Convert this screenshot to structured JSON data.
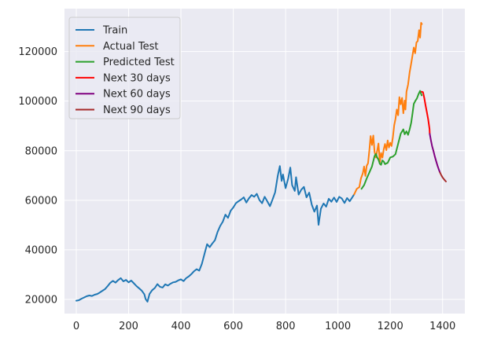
{
  "chart_data": {
    "type": "line",
    "xlim": [
      -45,
      1485
    ],
    "ylim": [
      14300,
      137300
    ],
    "x_ticks": [
      0,
      200,
      400,
      600,
      800,
      1000,
      1200,
      1400
    ],
    "y_ticks": [
      20000,
      40000,
      60000,
      80000,
      100000,
      120000
    ],
    "x_tick_labels": [
      "0",
      "200",
      "400",
      "600",
      "800",
      "1000",
      "1200",
      "1400"
    ],
    "y_tick_labels": [
      "20000",
      "40000",
      "60000",
      "80000",
      "100000",
      "120000"
    ],
    "grid": true,
    "legend_position": "upper-left",
    "series": [
      {
        "name": "Train",
        "color": "#1f77b4",
        "points": [
          [
            0,
            19500
          ],
          [
            10,
            19700
          ],
          [
            20,
            20300
          ],
          [
            30,
            20800
          ],
          [
            40,
            21300
          ],
          [
            50,
            21600
          ],
          [
            60,
            21400
          ],
          [
            70,
            21900
          ],
          [
            80,
            22200
          ],
          [
            90,
            22800
          ],
          [
            100,
            23500
          ],
          [
            110,
            24200
          ],
          [
            120,
            25400
          ],
          [
            130,
            26700
          ],
          [
            140,
            27500
          ],
          [
            150,
            26800
          ],
          [
            160,
            27800
          ],
          [
            170,
            28600
          ],
          [
            180,
            27300
          ],
          [
            190,
            27900
          ],
          [
            200,
            26900
          ],
          [
            210,
            27600
          ],
          [
            220,
            26500
          ],
          [
            230,
            25400
          ],
          [
            240,
            24500
          ],
          [
            250,
            23600
          ],
          [
            260,
            22100
          ],
          [
            265,
            20200
          ],
          [
            272,
            19100
          ],
          [
            280,
            22200
          ],
          [
            290,
            23700
          ],
          [
            300,
            24600
          ],
          [
            310,
            26200
          ],
          [
            320,
            25100
          ],
          [
            330,
            24800
          ],
          [
            340,
            26100
          ],
          [
            350,
            25600
          ],
          [
            360,
            26300
          ],
          [
            370,
            26900
          ],
          [
            380,
            27100
          ],
          [
            390,
            27700
          ],
          [
            400,
            28100
          ],
          [
            410,
            27400
          ],
          [
            420,
            28600
          ],
          [
            430,
            29300
          ],
          [
            440,
            30200
          ],
          [
            450,
            31400
          ],
          [
            460,
            32200
          ],
          [
            470,
            31600
          ],
          [
            480,
            34400
          ],
          [
            490,
            38400
          ],
          [
            500,
            42300
          ],
          [
            510,
            41100
          ],
          [
            520,
            42600
          ],
          [
            530,
            43900
          ],
          [
            540,
            47200
          ],
          [
            550,
            49600
          ],
          [
            560,
            51400
          ],
          [
            570,
            54200
          ],
          [
            580,
            52900
          ],
          [
            590,
            55800
          ],
          [
            600,
            57100
          ],
          [
            610,
            58800
          ],
          [
            620,
            59600
          ],
          [
            630,
            60300
          ],
          [
            640,
            61200
          ],
          [
            650,
            59100
          ],
          [
            660,
            60800
          ],
          [
            670,
            62100
          ],
          [
            680,
            61400
          ],
          [
            690,
            62600
          ],
          [
            700,
            60100
          ],
          [
            710,
            58800
          ],
          [
            720,
            61400
          ],
          [
            730,
            59600
          ],
          [
            740,
            57600
          ],
          [
            750,
            60300
          ],
          [
            760,
            63200
          ],
          [
            770,
            69800
          ],
          [
            778,
            73800
          ],
          [
            785,
            67800
          ],
          [
            790,
            70400
          ],
          [
            800,
            64900
          ],
          [
            810,
            68800
          ],
          [
            818,
            73200
          ],
          [
            825,
            66100
          ],
          [
            835,
            63800
          ],
          [
            840,
            69300
          ],
          [
            850,
            62300
          ],
          [
            860,
            64300
          ],
          [
            870,
            65400
          ],
          [
            880,
            61200
          ],
          [
            890,
            63100
          ],
          [
            900,
            58200
          ],
          [
            910,
            55400
          ],
          [
            920,
            57900
          ],
          [
            926,
            50100
          ],
          [
            935,
            56600
          ],
          [
            945,
            58700
          ],
          [
            955,
            57400
          ],
          [
            965,
            60600
          ],
          [
            975,
            59400
          ],
          [
            985,
            61100
          ],
          [
            995,
            59300
          ],
          [
            1005,
            61400
          ],
          [
            1015,
            60700
          ],
          [
            1025,
            58900
          ],
          [
            1035,
            60900
          ],
          [
            1045,
            59600
          ],
          [
            1055,
            61200
          ],
          [
            1062,
            62400
          ]
        ]
      },
      {
        "name": "Actual Test",
        "color": "#ff7f0e",
        "points": [
          [
            1062,
            62400
          ],
          [
            1072,
            64600
          ],
          [
            1082,
            65300
          ],
          [
            1088,
            68800
          ],
          [
            1095,
            70900
          ],
          [
            1100,
            73600
          ],
          [
            1105,
            69800
          ],
          [
            1110,
            73900
          ],
          [
            1115,
            74900
          ],
          [
            1120,
            80100
          ],
          [
            1125,
            85900
          ],
          [
            1130,
            82300
          ],
          [
            1135,
            86100
          ],
          [
            1140,
            79600
          ],
          [
            1145,
            77300
          ],
          [
            1150,
            80100
          ],
          [
            1155,
            82900
          ],
          [
            1160,
            75200
          ],
          [
            1165,
            79100
          ],
          [
            1170,
            77200
          ],
          [
            1175,
            80600
          ],
          [
            1180,
            82700
          ],
          [
            1185,
            80200
          ],
          [
            1190,
            84100
          ],
          [
            1195,
            81300
          ],
          [
            1200,
            83200
          ],
          [
            1205,
            81900
          ],
          [
            1210,
            85400
          ],
          [
            1215,
            90300
          ],
          [
            1220,
            92800
          ],
          [
            1225,
            96600
          ],
          [
            1230,
            94300
          ],
          [
            1235,
            101600
          ],
          [
            1240,
            98700
          ],
          [
            1245,
            101300
          ],
          [
            1250,
            95100
          ],
          [
            1255,
            100200
          ],
          [
            1258,
            96600
          ],
          [
            1262,
            103800
          ],
          [
            1268,
            106600
          ],
          [
            1274,
            111600
          ],
          [
            1280,
            115200
          ],
          [
            1285,
            118500
          ],
          [
            1290,
            121600
          ],
          [
            1295,
            119300
          ],
          [
            1300,
            123700
          ],
          [
            1305,
            124200
          ],
          [
            1310,
            128600
          ],
          [
            1314,
            125600
          ],
          [
            1318,
            131600
          ],
          [
            1321,
            131100
          ]
        ]
      },
      {
        "name": "Predicted Test",
        "color": "#2ca02c",
        "points": [
          [
            1090,
            64600
          ],
          [
            1100,
            66100
          ],
          [
            1110,
            68800
          ],
          [
            1120,
            71200
          ],
          [
            1130,
            73600
          ],
          [
            1135,
            75800
          ],
          [
            1140,
            77800
          ],
          [
            1145,
            78700
          ],
          [
            1150,
            77200
          ],
          [
            1155,
            76400
          ],
          [
            1160,
            74700
          ],
          [
            1165,
            74300
          ],
          [
            1170,
            76100
          ],
          [
            1175,
            75600
          ],
          [
            1180,
            74600
          ],
          [
            1190,
            75100
          ],
          [
            1200,
            77300
          ],
          [
            1210,
            77600
          ],
          [
            1220,
            78600
          ],
          [
            1230,
            82800
          ],
          [
            1240,
            86900
          ],
          [
            1250,
            88600
          ],
          [
            1255,
            86600
          ],
          [
            1262,
            87800
          ],
          [
            1268,
            86400
          ],
          [
            1274,
            88600
          ],
          [
            1280,
            91300
          ],
          [
            1285,
            95100
          ],
          [
            1290,
            98900
          ],
          [
            1296,
            100100
          ],
          [
            1302,
            101100
          ],
          [
            1308,
            102800
          ],
          [
            1314,
            104100
          ],
          [
            1320,
            102300
          ]
        ]
      },
      {
        "name": "Next 30 days",
        "color": "#ff0000",
        "points": [
          [
            1320,
            103800
          ],
          [
            1325,
            103600
          ],
          [
            1330,
            101300
          ],
          [
            1335,
            98200
          ],
          [
            1340,
            95400
          ],
          [
            1345,
            92600
          ],
          [
            1350,
            88800
          ],
          [
            1351,
            86800
          ]
        ]
      },
      {
        "name": "Next 60 days",
        "color": "#800080",
        "points": [
          [
            1351,
            86800
          ],
          [
            1355,
            84300
          ],
          [
            1360,
            81800
          ],
          [
            1365,
            79900
          ],
          [
            1370,
            77800
          ],
          [
            1375,
            75900
          ],
          [
            1380,
            74100
          ],
          [
            1385,
            72600
          ],
          [
            1390,
            71200
          ]
        ]
      },
      {
        "name": "Next 90 days",
        "color": "#a52a2a",
        "points": [
          [
            1390,
            71200
          ],
          [
            1395,
            70100
          ],
          [
            1400,
            69200
          ],
          [
            1405,
            68500
          ],
          [
            1410,
            67900
          ],
          [
            1413,
            67600
          ]
        ]
      }
    ]
  }
}
